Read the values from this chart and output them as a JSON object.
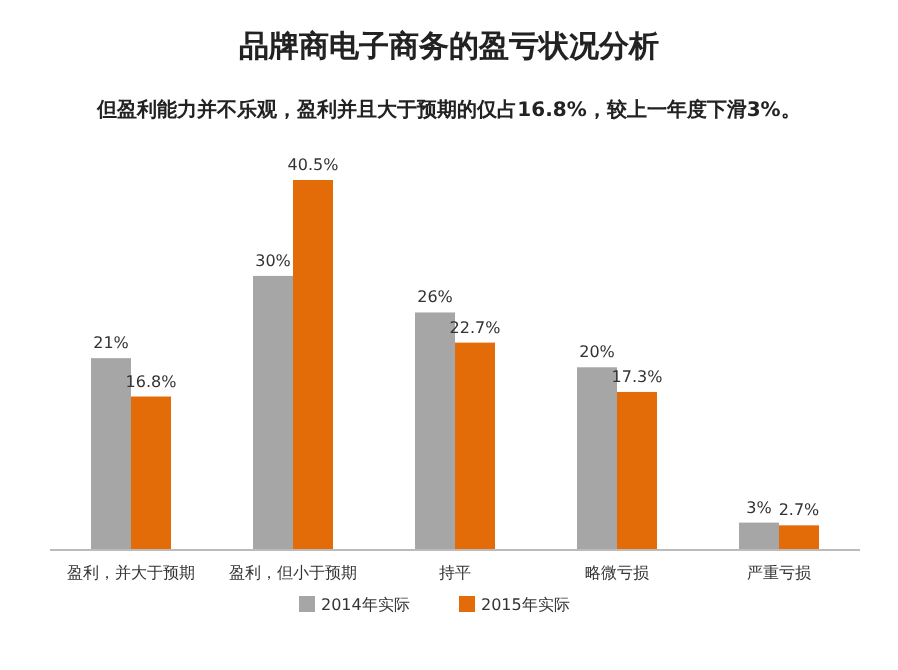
{
  "chart_data": {
    "type": "bar",
    "title": "品牌商电子商务的盈亏状况分析",
    "subtitle": "但盈利能力并不乐观，盈利并且大于预期的仅占16.8%，较上一年度下滑3%。",
    "categories": [
      "盈利，并大于预期",
      "盈利，但小于预期",
      "持平",
      "略微亏损",
      "严重亏损"
    ],
    "legend": "bottom",
    "series": [
      {
        "name": "2014年实际",
        "color": "#a6a6a6",
        "values": [
          21,
          30,
          26,
          20,
          3
        ],
        "value_labels": [
          "21%",
          "30%",
          "26%",
          "20%",
          "3%"
        ]
      },
      {
        "name": "2015年实际",
        "color": "#e36c09",
        "values": [
          16.8,
          40.5,
          22.7,
          17.3,
          2.7
        ],
        "value_labels": [
          "16.8%",
          "40.5%",
          "22.7%",
          "17.3%",
          "2.7%"
        ]
      }
    ]
  }
}
